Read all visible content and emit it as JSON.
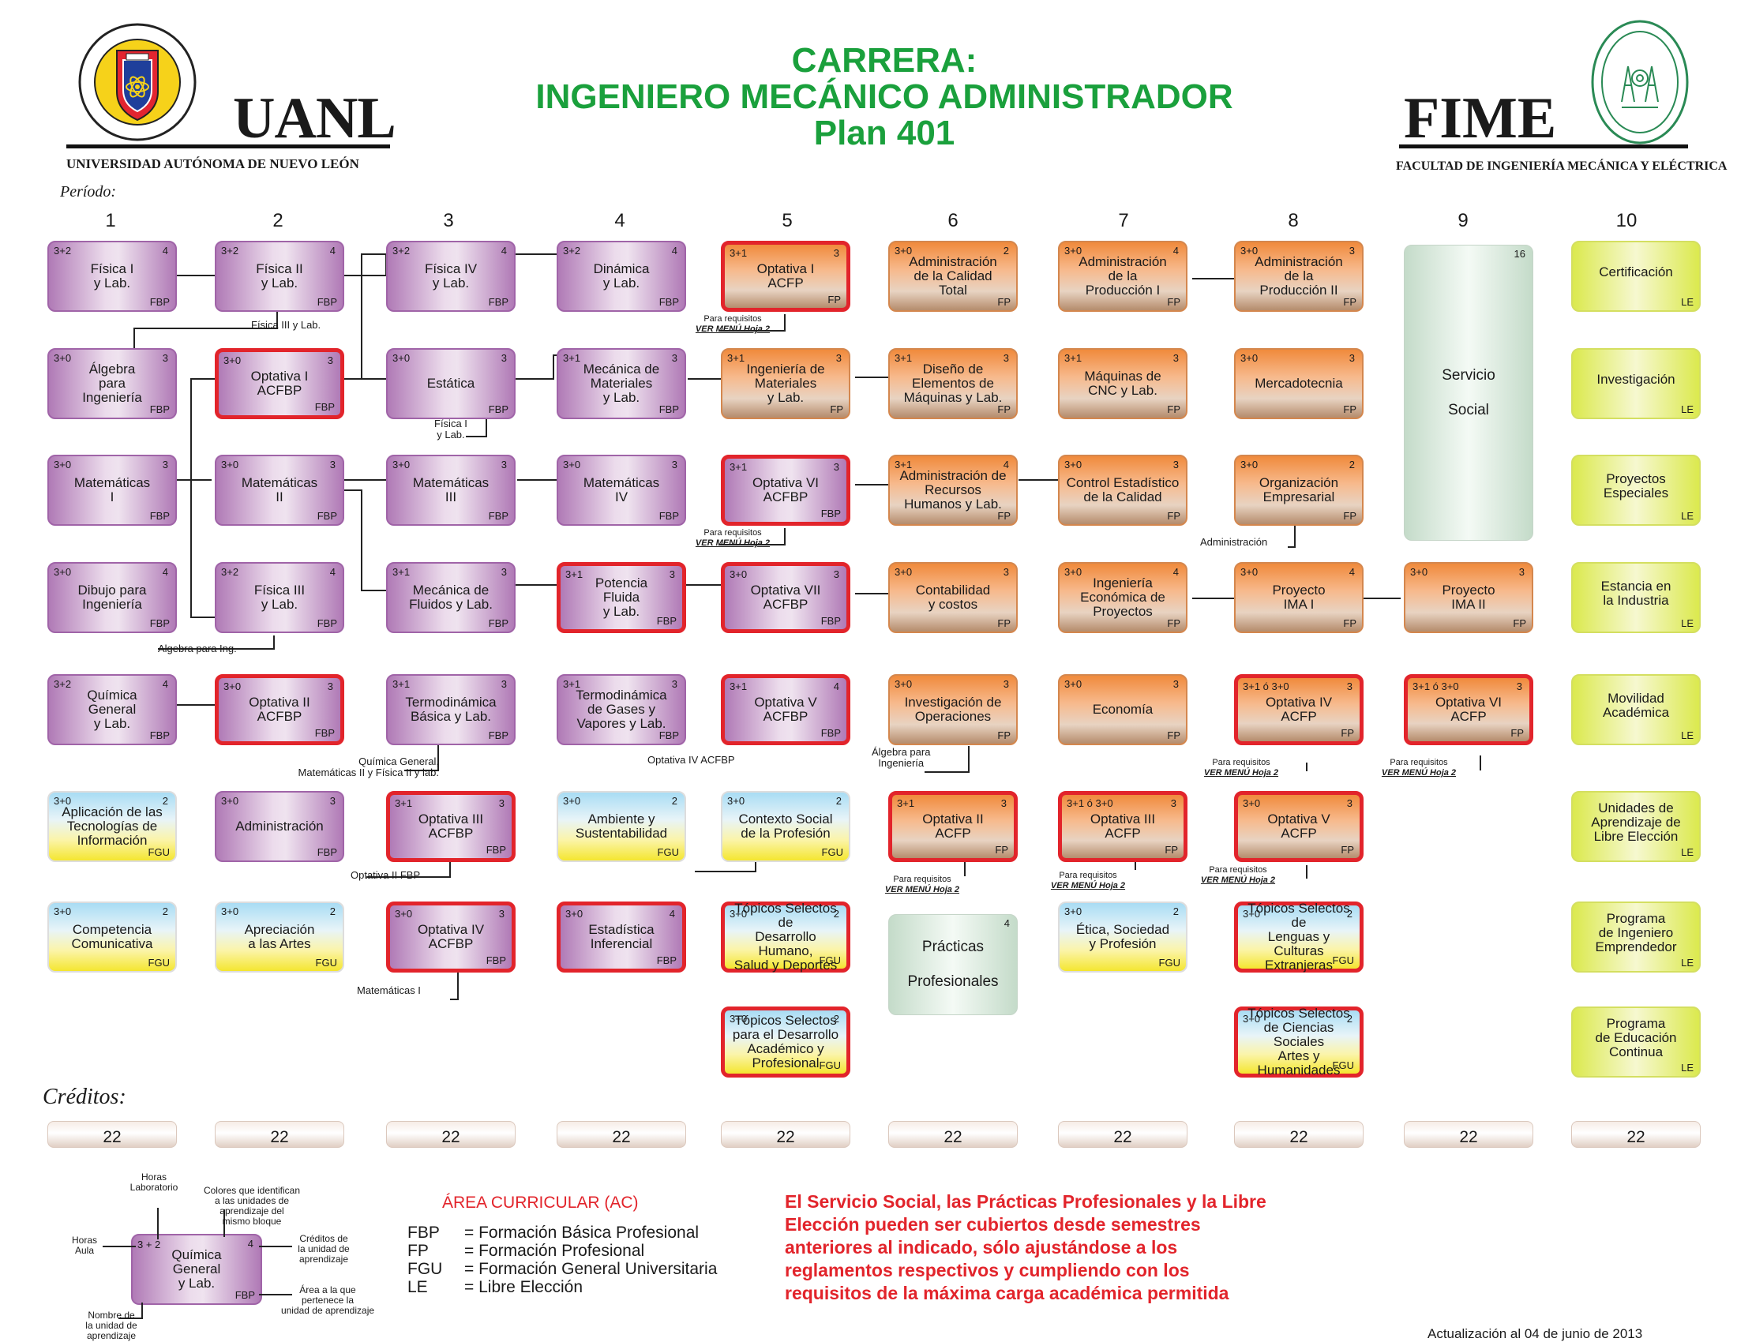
{
  "header": {
    "line1": "CARRERA:",
    "line2": "INGENIERO MECÁNICO ADMINISTRADOR",
    "line3": "Plan 401",
    "uanl": "UANL",
    "uanl_full": "UNIVERSIDAD AUTÓNOMA DE NUEVO LEÓN",
    "uanl_seal_text": "UNIVERSIDAD AUTÓNOMA DE NUEVO LEÓN · ALERE FLAMMAM VERITATIS",
    "fime": "FIME",
    "fime_full": "FACULTAD DE INGENIERÍA MECÁNICA Y ELÉCTRICA",
    "fime_seal_text": "FACULTAD DE INGENIERÍA MECÁNICA Y ELÉCTRICA · U.A.N.L."
  },
  "periodo_label": "Período:",
  "periods": [
    "1",
    "2",
    "3",
    "4",
    "5",
    "6",
    "7",
    "8",
    "9",
    "10"
  ],
  "creditos_label": "Créditos:",
  "credits": [
    "22",
    "22",
    "22",
    "22",
    "22",
    "22",
    "22",
    "22",
    "22",
    "22"
  ],
  "courses": [
    {
      "hrs": "3+2",
      "cr": "4",
      "name": "Física I\ny Lab.",
      "area": "FBP"
    },
    {
      "hrs": "3+0",
      "cr": "3",
      "name": "Álgebra\npara\nIngeniería",
      "area": "FBP"
    },
    {
      "hrs": "3+0",
      "cr": "3",
      "name": "Matemáticas\nI",
      "area": "FBP"
    },
    {
      "hrs": "3+0",
      "cr": "4",
      "name": "Dibujo para\nIngeniería",
      "area": "FBP"
    },
    {
      "hrs": "3+2",
      "cr": "4",
      "name": "Química\nGeneral\ny Lab.",
      "area": "FBP"
    },
    {
      "hrs": "3+0",
      "cr": "2",
      "name": "Aplicación de las\nTecnologías de\nInformación",
      "area": "FGU"
    },
    {
      "hrs": "3+0",
      "cr": "2",
      "name": "Competencia\nComunicativa",
      "area": "FGU"
    },
    {
      "hrs": "3+2",
      "cr": "4",
      "name": "Física II\ny Lab.",
      "area": "FBP"
    },
    {
      "hrs": "3+0",
      "cr": "3",
      "name": "Optativa I\nACFBP",
      "area": "FBP"
    },
    {
      "hrs": "3+0",
      "cr": "3",
      "name": "Matemáticas\nII",
      "area": "FBP"
    },
    {
      "hrs": "3+2",
      "cr": "4",
      "name": "Física III\ny Lab.",
      "area": "FBP"
    },
    {
      "hrs": "3+0",
      "cr": "3",
      "name": "Optativa II\nACFBP",
      "area": "FBP"
    },
    {
      "hrs": "3+0",
      "cr": "3",
      "name": "Administración",
      "area": "FBP"
    },
    {
      "hrs": "3+0",
      "cr": "2",
      "name": "Apreciación\na las Artes",
      "area": "FGU"
    },
    {
      "hrs": "3+2",
      "cr": "4",
      "name": "Física IV\ny Lab.",
      "area": "FBP"
    },
    {
      "hrs": "3+0",
      "cr": "3",
      "name": "Estática",
      "area": "FBP"
    },
    {
      "hrs": "3+0",
      "cr": "3",
      "name": "Matemáticas\nIII",
      "area": "FBP"
    },
    {
      "hrs": "3+1",
      "cr": "3",
      "name": "Mecánica de\nFluidos y Lab.",
      "area": "FBP"
    },
    {
      "hrs": "3+1",
      "cr": "3",
      "name": "Termodinámica\nBásica y Lab.",
      "area": "FBP"
    },
    {
      "hrs": "3+1",
      "cr": "3",
      "name": "Optativa III\nACFBP",
      "area": "FBP"
    },
    {
      "hrs": "3+0",
      "cr": "3",
      "name": "Optativa IV\nACFBP",
      "area": "FBP"
    },
    {
      "hrs": "3+2",
      "cr": "4",
      "name": "Dinámica\ny Lab.",
      "area": "FBP"
    },
    {
      "hrs": "3+1",
      "cr": "3",
      "name": "Mecánica de\nMateriales\ny Lab.",
      "area": "FBP"
    },
    {
      "hrs": "3+0",
      "cr": "3",
      "name": "Matemáticas\nIV",
      "area": "FBP"
    },
    {
      "hrs": "3+1",
      "cr": "3",
      "name": "Potencia\nFluida\ny Lab.",
      "area": "FBP"
    },
    {
      "hrs": "3+1",
      "cr": "3",
      "name": "Termodinámica\nde Gases y\nVapores y Lab.",
      "area": "FBP"
    },
    {
      "hrs": "3+0",
      "cr": "2",
      "name": "Ambiente y\nSustentabilidad",
      "area": "FGU"
    },
    {
      "hrs": "3+0",
      "cr": "4",
      "name": "Estadística\nInferencial",
      "area": "FBP"
    },
    {
      "hrs": "3+1",
      "cr": "3",
      "name": "Optativa I\nACFP",
      "area": "FP"
    },
    {
      "hrs": "3+1",
      "cr": "3",
      "name": "Ingeniería de\nMateriales\ny Lab.",
      "area": "FP"
    },
    {
      "hrs": "3+1",
      "cr": "3",
      "name": "Optativa VI\nACFBP",
      "area": "FBP"
    },
    {
      "hrs": "3+0",
      "cr": "3",
      "name": "Optativa VII\nACFBP",
      "area": "FBP"
    },
    {
      "hrs": "3+1",
      "cr": "4",
      "name": "Optativa V\nACFBP",
      "area": "FBP"
    },
    {
      "hrs": "3+0",
      "cr": "2",
      "name": "Contexto Social\nde la Profesión",
      "area": "FGU"
    },
    {
      "hrs": "3+0",
      "cr": "2",
      "name": "Tópicos Selectos de\nDesarrollo Humano,\nSalud y Deportes",
      "area": "FGU"
    },
    {
      "hrs": "3+0",
      "cr": "2",
      "name": "Tópicos Selectos\npara el Desarrollo\nAcadémico y\nProfesional",
      "area": "FGU"
    },
    {
      "hrs": "3+0",
      "cr": "2",
      "name": "Administración\nde la Calidad\nTotal",
      "area": "FP"
    },
    {
      "hrs": "3+1",
      "cr": "3",
      "name": "Diseño de\nElementos de\nMáquinas y Lab.",
      "area": "FP"
    },
    {
      "hrs": "3+1",
      "cr": "4",
      "name": "Administración de\nRecursos\nHumanos y Lab.",
      "area": "FP"
    },
    {
      "hrs": "3+0",
      "cr": "3",
      "name": "Contabilidad\ny costos",
      "area": "FP"
    },
    {
      "hrs": "3+0",
      "cr": "3",
      "name": "Investigación de\nOperaciones",
      "area": "FP"
    },
    {
      "hrs": "3+1",
      "cr": "3",
      "name": "Optativa II\nACFP",
      "area": "FP"
    },
    {
      "hrs": "",
      "cr": "4",
      "name": "Prácticas\n\nProfesionales",
      "area": ""
    },
    {
      "hrs": "3+0",
      "cr": "4",
      "name": "Administración\nde la\nProducción I",
      "area": "FP"
    },
    {
      "hrs": "3+1",
      "cr": "3",
      "name": "Máquinas de\nCNC y Lab.",
      "area": "FP"
    },
    {
      "hrs": "3+0",
      "cr": "3",
      "name": "Control Estadístico\nde la Calidad",
      "area": "FP"
    },
    {
      "hrs": "3+0",
      "cr": "4",
      "name": "Ingeniería\nEconómica de\nProyectos",
      "area": "FP"
    },
    {
      "hrs": "3+0",
      "cr": "3",
      "name": "Economía",
      "area": "FP"
    },
    {
      "hrs": "3+1 ó 3+0",
      "cr": "3",
      "name": "Optativa III\nACFP",
      "area": "FP"
    },
    {
      "hrs": "3+0",
      "cr": "2",
      "name": "Ética, Sociedad\ny Profesión",
      "area": "FGU"
    },
    {
      "hrs": "3+0",
      "cr": "3",
      "name": "Administración\nde la\nProducción II",
      "area": "FP"
    },
    {
      "hrs": "3+0",
      "cr": "3",
      "name": "Mercadotecnia",
      "area": "FP"
    },
    {
      "hrs": "3+0",
      "cr": "2",
      "name": "Organización\nEmpresarial",
      "area": "FP"
    },
    {
      "hrs": "3+0",
      "cr": "4",
      "name": "Proyecto\nIMA I",
      "area": "FP"
    },
    {
      "hrs": "3+1 ó 3+0",
      "cr": "3",
      "name": "Optativa IV\nACFP",
      "area": "FP"
    },
    {
      "hrs": "3+0",
      "cr": "3",
      "name": "Optativa V\nACFP",
      "area": "FP"
    },
    {
      "hrs": "3+0",
      "cr": "2",
      "name": "Tópicos Selectos de\nLenguas y\nCulturas Extranjeras",
      "area": "FGU"
    },
    {
      "hrs": "3+0",
      "cr": "2",
      "name": "Tópicos Selectos\nde Ciencias Sociales\nArtes y Humanidades",
      "area": "FGU"
    },
    {
      "hrs": "",
      "cr": "16",
      "name": "Servicio\n\nSocial",
      "area": ""
    },
    {
      "hrs": "3+0",
      "cr": "3",
      "name": "Proyecto\nIMA II",
      "area": "FP"
    },
    {
      "hrs": "3+1 ó 3+0",
      "cr": "3",
      "name": "Optativa VI\nACFP",
      "area": "FP"
    },
    {
      "hrs": "",
      "cr": "",
      "name": "Certificación",
      "area": "LE"
    },
    {
      "hrs": "",
      "cr": "",
      "name": "Investigación",
      "area": "LE"
    },
    {
      "hrs": "",
      "cr": "",
      "name": "Proyectos\nEspeciales",
      "area": "LE"
    },
    {
      "hrs": "",
      "cr": "",
      "name": "Estancia en\nla Industria",
      "area": "LE"
    },
    {
      "hrs": "",
      "cr": "",
      "name": "Movilidad\nAcadémica",
      "area": "LE"
    },
    {
      "hrs": "",
      "cr": "",
      "name": "Unidades de\nAprendizaje de\nLibre Elección",
      "area": "LE"
    },
    {
      "hrs": "",
      "cr": "",
      "name": "Programa\nde Ingeniero\nEmprendedor",
      "area": "LE"
    },
    {
      "hrs": "",
      "cr": "",
      "name": "Programa\nde Educación\nContinua",
      "area": "LE"
    }
  ],
  "requisites": [
    "Física III y Lab.",
    "Algebra para Ing.",
    "Química General,\nMatemáticas II y Física II y lab.",
    "Física I\ny Lab.",
    "Optativa II FBP",
    "Matemáticas I",
    "Optativa IV ACFBP",
    "Álgebra para\nIngeniería",
    "Administración"
  ],
  "req_note": {
    "line1": "Para requisitos",
    "line2": "VER MENÚ Hoja 2"
  },
  "legend": {
    "hrs_lab": "Horas\nLaboratorio",
    "colors_note": "Colores que identifican\na las unidades de\naprendizaje del\nmismo bloque",
    "hrs_aula": "Horas\nAula",
    "creditos_note": "Créditos de\nla unidad de\naprendizaje",
    "area_note": "Área a la que\npertenece la\nunidad de aprendizaje",
    "nombre_note": "Nombre de\nla unidad de\naprendizaje",
    "sample": {
      "hrs": "3 + 2",
      "cr": "4",
      "name": "Química\nGeneral\ny Lab.",
      "area": "FBP"
    },
    "ac_title": "ÁREA CURRICULAR (AC)",
    "ac_items": [
      {
        "code": "FBP",
        "desc": "= Formación Básica Profesional"
      },
      {
        "code": "FP",
        "desc": "= Formación Profesional"
      },
      {
        "code": "FGU",
        "desc": "= Formación General Universitaria"
      },
      {
        "code": "LE",
        "desc": "= Libre Elección"
      }
    ]
  },
  "note": "El Servicio Social, las Prácticas Profesionales y la Libre Elección pueden ser cubiertos desde semestres anteriores al indicado, sólo ajustándose a los reglamentos respectivos y cumpliendo con los requisitos de la máxima carga académica permitida",
  "updated": "Actualización al 04 de junio de 2013"
}
